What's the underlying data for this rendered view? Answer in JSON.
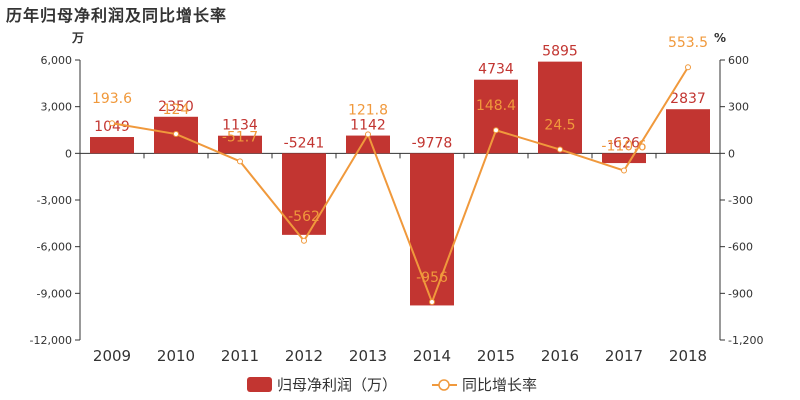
{
  "chart_data": {
    "type": "bar+line",
    "title": "历年归母净利润及同比增长率",
    "categories": [
      "2009",
      "2010",
      "2011",
      "2012",
      "2013",
      "2014",
      "2015",
      "2016",
      "2017",
      "2018"
    ],
    "series": [
      {
        "name": "归母净利润（万）",
        "type": "bar",
        "axis": "left",
        "values": [
          1049,
          2350,
          1134,
          -5241,
          1142,
          -9778,
          4734,
          5895,
          -626,
          2837
        ],
        "labels": [
          "1049",
          "2350",
          "1134",
          "-5241",
          "1142",
          "-9778",
          "4734",
          "5895",
          "-626",
          "2837"
        ],
        "color": "#c23531"
      },
      {
        "name": "同比增长率",
        "type": "line",
        "axis": "right",
        "values": [
          193.6,
          124,
          -51.7,
          -562,
          121.8,
          -956,
          148.4,
          24.5,
          -110.6,
          553.5
        ],
        "labels": [
          "193.6",
          "124",
          "-51.7",
          "-562",
          "121.8",
          "-956",
          "148.4",
          "24.5",
          "-110.6",
          "553.5"
        ],
        "color": "#f0993c"
      }
    ],
    "y_left": {
      "unit": "万",
      "min": -12000,
      "max": 6000,
      "ticks": [
        "6,000",
        "3,000",
        "0",
        "-3,000",
        "-6,000",
        "-9,000",
        "-12,000"
      ]
    },
    "y_right": {
      "unit": "%",
      "min": -1200,
      "max": 600,
      "ticks": [
        "600",
        "300",
        "0",
        "-300",
        "-600",
        "-900",
        "-1,200"
      ]
    },
    "legend_position": "bottom-center",
    "grid": false
  }
}
